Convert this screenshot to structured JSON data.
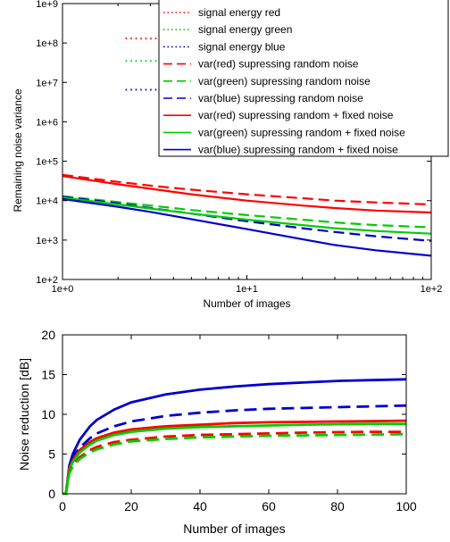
{
  "chart_data": [
    {
      "type": "line",
      "xscale": "log",
      "yscale": "log",
      "xlabel": "Number of images",
      "ylabel": "Remaining noise variance",
      "xlim": [
        1,
        100
      ],
      "ylim": [
        100,
        1000000000
      ],
      "xticks": [
        "1e+0",
        "1e+1",
        "1e+2"
      ],
      "yticks": [
        "1e+2",
        "1e+3",
        "1e+4",
        "1e+5",
        "1e+6",
        "1e+7",
        "1e+8",
        "1e+9"
      ],
      "legend": "top-right",
      "grid": false,
      "x": [
        1,
        2,
        3,
        5,
        10,
        20,
        30,
        50,
        100
      ],
      "series": [
        {
          "name": "signal energy red",
          "color": "#ff0000",
          "style": "dotted",
          "values": [
            130000000,
            130000000,
            130000000,
            130000000,
            130000000,
            130000000,
            130000000,
            130000000,
            130000000
          ]
        },
        {
          "name": "signal energy green",
          "color": "#00cc00",
          "style": "dotted",
          "values": [
            35000000,
            35000000,
            35000000,
            35000000,
            35000000,
            35000000,
            35000000,
            35000000,
            35000000
          ]
        },
        {
          "name": "signal energy blue",
          "color": "#0000cc",
          "style": "dotted",
          "values": [
            6500000,
            6500000,
            6500000,
            6500000,
            6500000,
            6500000,
            6500000,
            6500000,
            6500000
          ]
        },
        {
          "name": "var(red) supressing random noise",
          "color": "#ff0000",
          "style": "dashed",
          "values": [
            45000,
            30000,
            24000,
            19000,
            14500,
            11500,
            10000,
            9000,
            8000
          ]
        },
        {
          "name": "var(green) supressing random noise",
          "color": "#00cc00",
          "style": "dashed",
          "values": [
            13000,
            9200,
            7500,
            5800,
            4300,
            3300,
            2800,
            2400,
            2100
          ]
        },
        {
          "name": "var(blue) supressing random noise",
          "color": "#0000cc",
          "style": "dashed",
          "values": [
            12500,
            8500,
            6500,
            4700,
            3000,
            2000,
            1600,
            1250,
            950
          ]
        },
        {
          "name": "var(red) supressing random + fixed noise",
          "color": "#ff0000",
          "style": "solid",
          "values": [
            42000,
            26000,
            20000,
            14500,
            10000,
            7500,
            6500,
            5600,
            5000
          ]
        },
        {
          "name": "var(green) supressing random + fixed noise",
          "color": "#00cc00",
          "style": "solid",
          "values": [
            12000,
            8000,
            6300,
            4700,
            3300,
            2400,
            2000,
            1700,
            1450
          ]
        },
        {
          "name": "var(blue) supressing random + fixed noise",
          "color": "#0000cc",
          "style": "solid",
          "values": [
            11000,
            7000,
            5200,
            3400,
            1900,
            1050,
            750,
            550,
            400
          ]
        }
      ]
    },
    {
      "type": "line",
      "xlabel": "Number of images",
      "ylabel": "Noise reduction [dB]",
      "xlim": [
        0,
        100
      ],
      "ylim": [
        0,
        20
      ],
      "xticks": [
        "0",
        "20",
        "40",
        "60",
        "80",
        "100"
      ],
      "yticks": [
        "0",
        "5",
        "10",
        "15",
        "20"
      ],
      "grid": false,
      "x": [
        1,
        2,
        3,
        5,
        8,
        10,
        15,
        20,
        30,
        40,
        50,
        60,
        70,
        80,
        90,
        100
      ],
      "series": [
        {
          "color": "#0000cc",
          "style": "solid",
          "values": [
            0,
            3.6,
            5.0,
            6.8,
            8.5,
            9.3,
            10.6,
            11.5,
            12.5,
            13.1,
            13.5,
            13.8,
            14.0,
            14.2,
            14.3,
            14.4
          ]
        },
        {
          "color": "#0000cc",
          "style": "dashed",
          "values": [
            0,
            3.4,
            4.6,
            5.8,
            7.0,
            7.6,
            8.5,
            9.1,
            9.8,
            10.2,
            10.5,
            10.7,
            10.8,
            10.9,
            11.0,
            11.1
          ]
        },
        {
          "color": "#ff0000",
          "style": "solid",
          "values": [
            0,
            3.2,
            4.2,
            5.5,
            6.5,
            7.0,
            7.7,
            8.1,
            8.5,
            8.7,
            8.9,
            9.0,
            9.05,
            9.1,
            9.15,
            9.2
          ]
        },
        {
          "color": "#00cc00",
          "style": "solid",
          "values": [
            0,
            3.0,
            4.0,
            5.2,
            6.2,
            6.7,
            7.4,
            7.8,
            8.2,
            8.4,
            8.5,
            8.6,
            8.7,
            8.75,
            8.8,
            8.8
          ]
        },
        {
          "color": "#ff0000",
          "style": "dashed",
          "values": [
            0,
            2.8,
            3.6,
            4.6,
            5.5,
            5.9,
            6.5,
            6.8,
            7.2,
            7.4,
            7.5,
            7.6,
            7.7,
            7.75,
            7.8,
            7.8
          ]
        },
        {
          "color": "#00cc00",
          "style": "dashed",
          "values": [
            0,
            2.6,
            3.4,
            4.4,
            5.2,
            5.6,
            6.2,
            6.6,
            6.9,
            7.1,
            7.2,
            7.3,
            7.35,
            7.4,
            7.45,
            7.5
          ]
        }
      ]
    }
  ]
}
